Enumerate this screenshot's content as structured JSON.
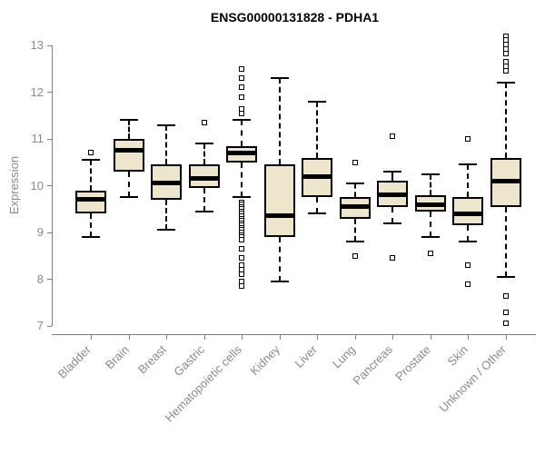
{
  "chart_data": {
    "type": "boxplot",
    "title": "ENSG00000131828 - PDHA1",
    "ylabel": "Expression",
    "ylim": [
      7,
      13.3
    ],
    "yticks": [
      7,
      8,
      9,
      10,
      11,
      12,
      13
    ],
    "grid": false,
    "legend": "none",
    "colors": {
      "box_fill": "#EDE6CC",
      "box_border": "#000000",
      "median": "#000000",
      "whisker": "#000000",
      "axis_line": "#7f7f7f",
      "tick_label": "#8a8a8a",
      "title": "#000000",
      "background": "#ffffff"
    },
    "categories": [
      "Bladder",
      "Brain",
      "Breast",
      "Gastric",
      "Hematopoietic cells",
      "Kidney",
      "Liver",
      "Lung",
      "Pancreas",
      "Prostate",
      "Skin",
      "Unknown / Other"
    ],
    "series": [
      {
        "name": "Bladder",
        "low": 8.9,
        "q1": 9.4,
        "median": 9.7,
        "q3": 9.9,
        "high": 10.55,
        "outliers": [
          10.7
        ]
      },
      {
        "name": "Brain",
        "low": 9.75,
        "q1": 10.3,
        "median": 10.75,
        "q3": 11.0,
        "high": 11.4,
        "outliers": []
      },
      {
        "name": "Breast",
        "low": 9.05,
        "q1": 9.7,
        "median": 10.05,
        "q3": 10.45,
        "high": 11.3,
        "outliers": []
      },
      {
        "name": "Gastric",
        "low": 9.45,
        "q1": 9.95,
        "median": 10.15,
        "q3": 10.45,
        "high": 10.9,
        "outliers": [
          11.35
        ]
      },
      {
        "name": "Hematopoietic cells",
        "low": 9.75,
        "q1": 10.5,
        "median": 10.7,
        "q3": 10.85,
        "high": 11.4,
        "outliers": [
          12.5,
          12.3,
          12.1,
          11.9,
          11.65,
          11.55,
          9.65,
          9.6,
          9.55,
          9.5,
          9.45,
          9.4,
          9.35,
          9.3,
          9.25,
          9.2,
          9.15,
          9.1,
          9.05,
          9.0,
          8.95,
          8.9,
          8.85,
          8.65,
          8.45,
          8.3,
          8.2,
          8.1,
          7.95,
          7.85
        ]
      },
      {
        "name": "Kidney",
        "low": 7.95,
        "q1": 8.9,
        "median": 9.35,
        "q3": 10.45,
        "high": 12.3,
        "outliers": []
      },
      {
        "name": "Liver",
        "low": 9.4,
        "q1": 9.75,
        "median": 10.2,
        "q3": 10.6,
        "high": 11.8,
        "outliers": []
      },
      {
        "name": "Lung",
        "low": 8.8,
        "q1": 9.3,
        "median": 9.55,
        "q3": 9.75,
        "high": 10.05,
        "outliers": [
          10.5,
          8.5
        ]
      },
      {
        "name": "Pancreas",
        "low": 9.2,
        "q1": 9.55,
        "median": 9.8,
        "q3": 10.1,
        "high": 10.3,
        "outliers": [
          11.05,
          8.45
        ]
      },
      {
        "name": "Prostate",
        "low": 8.9,
        "q1": 9.45,
        "median": 9.6,
        "q3": 9.8,
        "high": 10.25,
        "outliers": [
          8.55
        ]
      },
      {
        "name": "Skin",
        "low": 8.8,
        "q1": 9.15,
        "median": 9.4,
        "q3": 9.75,
        "high": 10.45,
        "outliers": [
          11.0,
          8.3,
          7.9
        ]
      },
      {
        "name": "Unknown / Other",
        "low": 8.05,
        "q1": 9.55,
        "median": 10.1,
        "q3": 10.6,
        "high": 12.2,
        "outliers": [
          13.2,
          13.12,
          13.02,
          12.92,
          12.82,
          12.65,
          12.55,
          12.45,
          7.65,
          7.3,
          7.05
        ]
      }
    ]
  }
}
